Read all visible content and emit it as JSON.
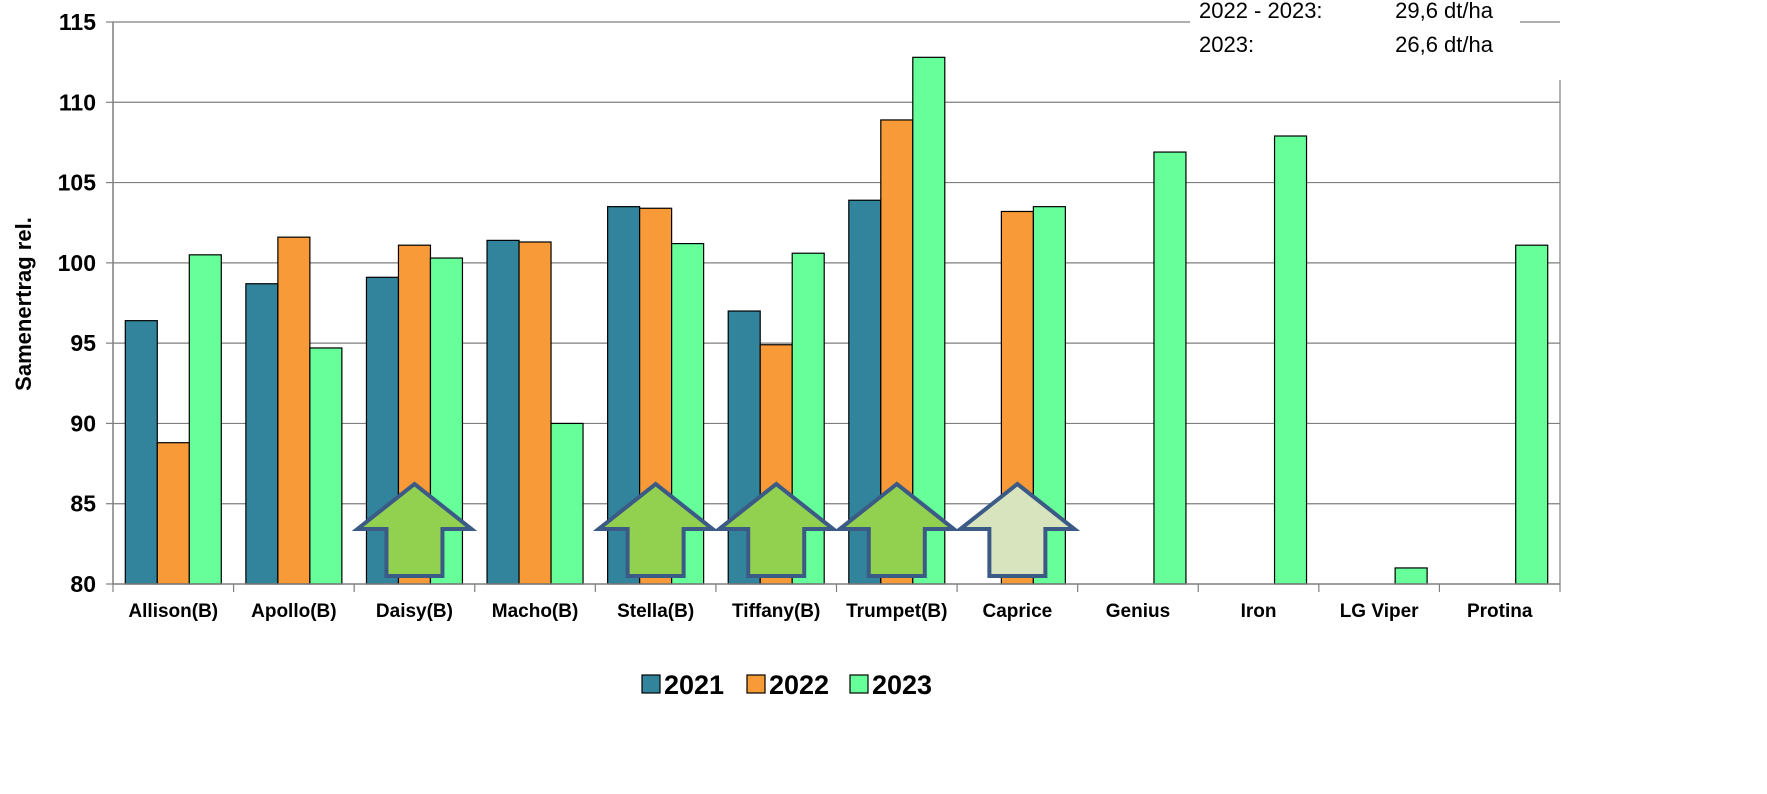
{
  "chart_data": {
    "type": "bar",
    "ylabel": "Samenertrag rel.",
    "ylim": [
      80,
      115
    ],
    "yticks": [
      80,
      85,
      90,
      95,
      100,
      105,
      110,
      115
    ],
    "categories": [
      "Allison(B)",
      "Apollo(B)",
      "Daisy(B)",
      "Macho(B)",
      "Stella(B)",
      "Tiffany(B)",
      "Trumpet(B)",
      "Caprice",
      "Genius",
      "Iron",
      "LG Viper",
      "Protina"
    ],
    "series": [
      {
        "name": "2021",
        "color": "#31849B",
        "values": [
          96.4,
          98.7,
          99.1,
          101.4,
          103.5,
          97.0,
          103.9,
          null,
          null,
          null,
          null,
          null
        ]
      },
      {
        "name": "2022",
        "color": "#F79A37",
        "values": [
          88.8,
          101.6,
          101.1,
          101.3,
          103.4,
          94.9,
          108.9,
          103.2,
          null,
          null,
          null,
          null
        ]
      },
      {
        "name": "2023",
        "color": "#66FF99",
        "values": [
          100.5,
          94.7,
          100.3,
          90.0,
          101.2,
          100.6,
          112.8,
          103.5,
          106.9,
          107.9,
          81.0,
          101.1
        ]
      }
    ],
    "annotations": {
      "arrows": [
        {
          "category": "Daisy(B)",
          "style": "green"
        },
        {
          "category": "Stella(B)",
          "style": "green"
        },
        {
          "category": "Tiffany(B)",
          "style": "green"
        },
        {
          "category": "Trumpet(B)",
          "style": "green"
        },
        {
          "category": "Caprice",
          "style": "pale"
        }
      ],
      "arrow_colors": {
        "green": "#92D050",
        "pale": "#D7E4BD",
        "border": "#3B5B86"
      }
    },
    "notes": [
      {
        "label": "2022 - 2023:",
        "value": "29,6 dt/ha"
      },
      {
        "label": "2023:",
        "value": "26,6 dt/ha"
      }
    ],
    "legend": {
      "position": "bottom"
    },
    "grid": true,
    "gridline_color": "#7F7F7F"
  }
}
